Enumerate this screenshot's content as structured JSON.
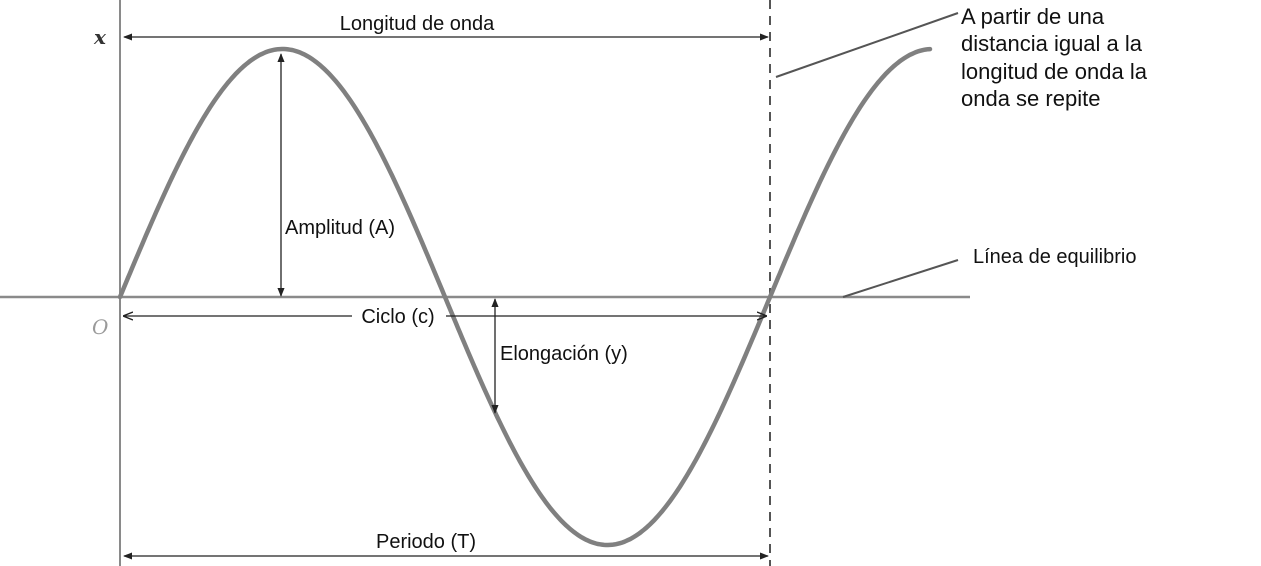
{
  "labels": {
    "axis_x": "x",
    "origin": "O",
    "wavelength": "Longitud de onda",
    "repeat_note": [
      "A partir de una",
      "distancia igual a la",
      "longitud de onda la",
      "onda se repite"
    ],
    "amplitude": "Amplitud (A)",
    "equilibrium": "Línea de equilibrio",
    "cycle": "Ciclo (c)",
    "elongation": "Elongación (y)",
    "period": "Periodo (T)"
  },
  "colors": {
    "wave": "#808080",
    "axis": "#8a8a8a",
    "arrow": "#222222",
    "text": "#111111",
    "origin": "#9a9a9a"
  }
}
